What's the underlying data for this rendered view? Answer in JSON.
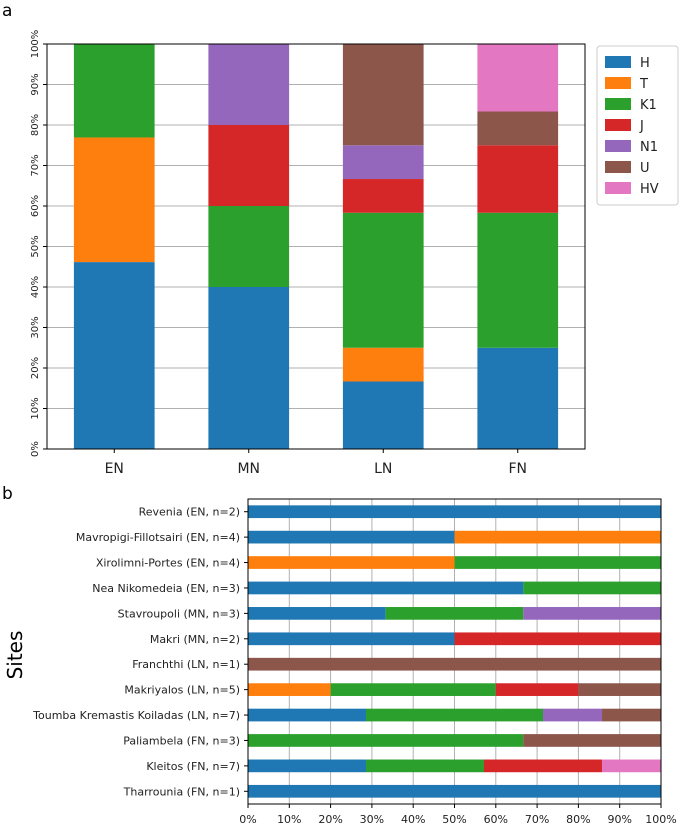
{
  "chart_data": [
    {
      "type": "bar",
      "panel_label": "a",
      "stacked": true,
      "orientation": "vertical",
      "categories": [
        "EN",
        "MN",
        "LN",
        "FN"
      ],
      "series": [
        {
          "name": "H",
          "values": [
            46.15,
            40,
            16.67,
            25
          ]
        },
        {
          "name": "T",
          "values": [
            30.77,
            0,
            8.33,
            0
          ]
        },
        {
          "name": "K1",
          "values": [
            23.08,
            20,
            33.33,
            33.33
          ]
        },
        {
          "name": "J",
          "values": [
            0,
            20,
            8.33,
            16.67
          ]
        },
        {
          "name": "N1",
          "values": [
            0,
            20,
            8.33,
            0
          ]
        },
        {
          "name": "U",
          "values": [
            0,
            0,
            25,
            8.33
          ]
        },
        {
          "name": "HV",
          "values": [
            0,
            0,
            0,
            16.67
          ]
        }
      ],
      "ylim": [
        0,
        100
      ],
      "yticks": [
        "0%",
        "10%",
        "20%",
        "30%",
        "40%",
        "50%",
        "60%",
        "70%",
        "80%",
        "90%",
        "100%"
      ],
      "xlabel": "",
      "ylabel": "",
      "grid": "horizontal",
      "legend": "right"
    },
    {
      "type": "bar",
      "panel_label": "b",
      "stacked": true,
      "orientation": "horizontal",
      "categories": [
        "Revenia (EN, n=2)",
        "Mavropigi-Fillotsairi (EN, n=4)",
        "Xirolimni-Portes (EN, n=4)",
        "Nea Nikomedeia (EN, n=3)",
        "Stavroupoli (MN, n=3)",
        "Makri (MN, n=2)",
        "Franchthi (LN, n=1)",
        "Makriyalos (LN, n=5)",
        "Toumba Kremastis Koiladas (LN, n=7)",
        "Paliambela (FN, n=3)",
        "Kleitos (FN, n=7)",
        "Tharrounia (FN, n=1)"
      ],
      "series": [
        {
          "name": "H",
          "values": [
            100,
            50,
            0,
            66.67,
            33.33,
            50,
            0,
            0,
            28.57,
            0,
            28.57,
            100
          ]
        },
        {
          "name": "T",
          "values": [
            0,
            50,
            50,
            0,
            0,
            0,
            0,
            20,
            0,
            0,
            0,
            0
          ]
        },
        {
          "name": "K1",
          "values": [
            0,
            0,
            50,
            33.33,
            33.33,
            0,
            0,
            40,
            42.86,
            66.67,
            28.57,
            0
          ]
        },
        {
          "name": "J",
          "values": [
            0,
            0,
            0,
            0,
            0,
            50,
            0,
            20,
            0,
            0,
            28.57,
            0
          ]
        },
        {
          "name": "N1",
          "values": [
            0,
            0,
            0,
            0,
            33.33,
            0,
            0,
            0,
            14.29,
            0,
            0,
            0
          ]
        },
        {
          "name": "U",
          "values": [
            0,
            0,
            0,
            0,
            0,
            0,
            100,
            20,
            14.29,
            33.33,
            0,
            0
          ]
        },
        {
          "name": "HV",
          "values": [
            0,
            0,
            0,
            0,
            0,
            0,
            0,
            0,
            0,
            0,
            14.29,
            0
          ]
        }
      ],
      "xlim": [
        0,
        100
      ],
      "xticks": [
        "0%",
        "10%",
        "20%",
        "30%",
        "40%",
        "50%",
        "60%",
        "70%",
        "80%",
        "90%",
        "100%"
      ],
      "ylabel": "Sites",
      "xlabel": "",
      "grid": "vertical"
    }
  ],
  "colors": {
    "H": "#1f77b4",
    "T": "#ff7f0e",
    "K1": "#2ca02c",
    "J": "#d62728",
    "N1": "#9467bd",
    "U": "#8c564b",
    "HV": "#e377c2",
    "grid": "#b0b0b0",
    "axis": "#000000"
  }
}
